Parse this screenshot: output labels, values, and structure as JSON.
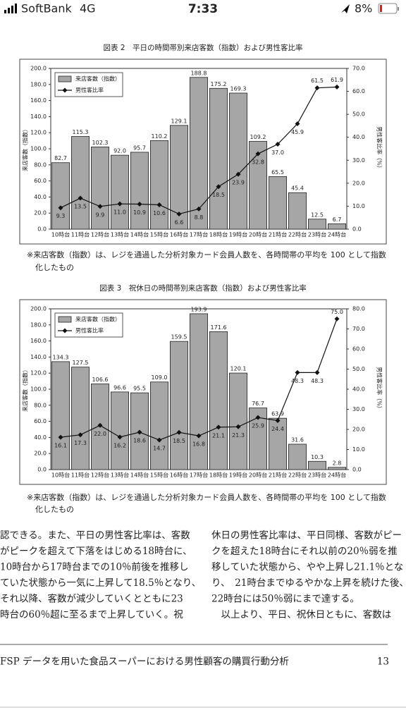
{
  "status_bar": {
    "carrier": "SoftBank",
    "network": "4G",
    "time": "7:33",
    "battery": "8%"
  },
  "chart_data": [
    {
      "type": "bar",
      "title": "図表 2　平日の時間帯別来店客数（指数）および男性客比率",
      "categories": [
        "10時台",
        "11時台",
        "12時台",
        "13時台",
        "14時台",
        "15時台",
        "16時台",
        "17時台",
        "18時台",
        "19時台",
        "20時台",
        "21時台",
        "22時台",
        "23時台",
        "24時台"
      ],
      "series": [
        {
          "name": "来店客数（指数）",
          "color": "#a6a6a6",
          "type": "bar",
          "values": [
            82.7,
            115.3,
            102.3,
            92.0,
            95.7,
            110.2,
            129.1,
            188.8,
            175.2,
            169.3,
            109.2,
            65.5,
            45.4,
            12.5,
            6.7
          ],
          "value_labels": [
            "82.7",
            "115.3",
            "102.3",
            "92.0",
            "95.7",
            "110.2",
            "129.1",
            "188.8",
            "175.2",
            "169.3",
            "109.2",
            "65.5",
            "45.4",
            "12.5",
            "6.7"
          ]
        },
        {
          "name": "男性客比率",
          "color": "#111111",
          "type": "line",
          "axis": "y2",
          "values": [
            9.3,
            13.5,
            9.9,
            11.0,
            10.9,
            10.6,
            6.6,
            8.8,
            18.5,
            23.9,
            32.8,
            37.0,
            45.9,
            61.5,
            61.9
          ],
          "value_labels": [
            "9.3",
            "13.5",
            "9.9",
            "11.0",
            "10.9",
            "10.6",
            "6.6",
            "8.8",
            "18.5",
            "23.9",
            "32.8",
            "37.0",
            "45.9",
            "61.5",
            "61.9"
          ]
        }
      ],
      "ylabel": "来店客数（指数）",
      "y2label": "男性客比率（%）",
      "ylim": [
        0,
        200
      ],
      "yticks": [
        {
          "value": 0,
          "label": "0.0"
        },
        {
          "value": 20,
          "label": "20.0"
        },
        {
          "value": 40,
          "label": "40.0"
        },
        {
          "value": 60,
          "label": "60.0"
        },
        {
          "value": 80,
          "label": "80.0"
        },
        {
          "value": 100,
          "label": "100.0"
        },
        {
          "value": 120,
          "label": "120.0"
        },
        {
          "value": 140,
          "label": "140.0"
        },
        {
          "value": 160,
          "label": "160.0"
        },
        {
          "value": 180,
          "label": "180.0"
        },
        {
          "value": 200,
          "label": "200.0"
        }
      ],
      "y2lim": [
        0,
        70
      ],
      "y2ticks": [
        {
          "value": 0,
          "label": "0.0"
        },
        {
          "value": 10,
          "label": "10.0"
        },
        {
          "value": 20,
          "label": "20.0"
        },
        {
          "value": 30,
          "label": "30.0"
        },
        {
          "value": 40,
          "label": "40.0"
        },
        {
          "value": 50,
          "label": "50.0"
        },
        {
          "value": 60,
          "label": "60.0"
        },
        {
          "value": 70,
          "label": "70.0"
        }
      ],
      "legend": "upper left",
      "grid": false
    },
    {
      "type": "bar",
      "title": "図表 3　祝休日の時間帯別来店客数（指数）および男性客比率",
      "categories": [
        "10時台",
        "11時台",
        "12時台",
        "13時台",
        "14時台",
        "15時台",
        "16時台",
        "17時台",
        "18時台",
        "19時台",
        "20時台",
        "21時台",
        "22時台",
        "23時台",
        "24時台"
      ],
      "series": [
        {
          "name": "来店客数（指数）",
          "color": "#a6a6a6",
          "type": "bar",
          "values": [
            134.3,
            127.5,
            106.6,
            96.6,
            95.5,
            109.0,
            159.5,
            193.9,
            171.6,
            120.1,
            76.7,
            63.9,
            31.6,
            10.3,
            2.8
          ],
          "value_labels": [
            "134.3",
            "127.5",
            "106.6",
            "96.6",
            "95.5",
            "109.0",
            "159.5",
            "193.9",
            "171.6",
            "120.1",
            "76.7",
            "63.9",
            "31.6",
            "10.3",
            "2.8"
          ]
        },
        {
          "name": "男性客比率",
          "color": "#111111",
          "type": "line",
          "axis": "y2",
          "values": [
            16.1,
            17.3,
            22.0,
            16.2,
            18.6,
            14.7,
            18.5,
            16.8,
            21.1,
            21.3,
            25.9,
            24.4,
            48.3,
            48.3,
            75.0
          ],
          "value_labels": [
            "16.1",
            "17.3",
            "22.0",
            "16.2",
            "18.6",
            "14.7",
            "18.5",
            "16.8",
            "21.1",
            "21.3",
            "25.9",
            "24.4",
            "48.3",
            "48.3",
            "75.0"
          ]
        }
      ],
      "ylabel": "来店客数（指数）",
      "y2label": "男性客比率（%）",
      "ylim": [
        0,
        200
      ],
      "yticks": [
        {
          "value": 0,
          "label": "0.0"
        },
        {
          "value": 20,
          "label": "20.0"
        },
        {
          "value": 40,
          "label": "40.0"
        },
        {
          "value": 60,
          "label": "60.0"
        },
        {
          "value": 80,
          "label": "80.0"
        },
        {
          "value": 100,
          "label": "100.0"
        },
        {
          "value": 120,
          "label": "120.0"
        },
        {
          "value": 140,
          "label": "140.0"
        },
        {
          "value": 160,
          "label": "160.0"
        },
        {
          "value": 180,
          "label": "180.0"
        },
        {
          "value": 200,
          "label": "200.0"
        }
      ],
      "y2lim": [
        0,
        80
      ],
      "y2ticks": [
        {
          "value": 0,
          "label": "0.0"
        },
        {
          "value": 10,
          "label": "10.0"
        },
        {
          "value": 20,
          "label": "20.0"
        },
        {
          "value": 30,
          "label": "30.0"
        },
        {
          "value": 40,
          "label": "40.0"
        },
        {
          "value": 50,
          "label": "50.0"
        },
        {
          "value": 60,
          "label": "60.0"
        },
        {
          "value": 70,
          "label": "70.0"
        },
        {
          "value": 80,
          "label": "80.0"
        }
      ],
      "legend": "upper left",
      "grid": false
    }
  ],
  "notes": [
    [
      "※来店客数（指数）は、レジを通過した分析対象カード会員人数を、各時間帯の平均を 100 として指数",
      "化したもの"
    ],
    [
      "※来店客数（指数）は、レジを通過した分析対象カード会員人数を、各時間帯の平均を 100 として指数",
      "化したもの"
    ]
  ],
  "body": {
    "left": [
      "認できる。また、平日の男性客比率は、客数",
      "がピークを超えて下落をはじめる18時台に、",
      "10時台から17時台までの10％前後を推移し",
      "ていた状態から一気に上昇して18.5％となり、",
      "それ以降、客数が減少していくとともに23",
      "時台の60％超に至るまで上昇していく。祝"
    ],
    "right": [
      "休日の男性客比率は、平日同様、客数がピー",
      "クを超えた18時台にそれ以前の20％弱を推",
      "移していた状態から、やや上昇し21.1％とな",
      "り、　21時台までゆるやかな上昇を続けた後、",
      "22時台には50％弱にまで達する。",
      "　以上より、平日、祝休日ともに、客数は"
    ]
  },
  "footer": {
    "title": "FSP データを用いた食品スーパーにおける男性顧客の購買行動分析",
    "page": "13"
  }
}
